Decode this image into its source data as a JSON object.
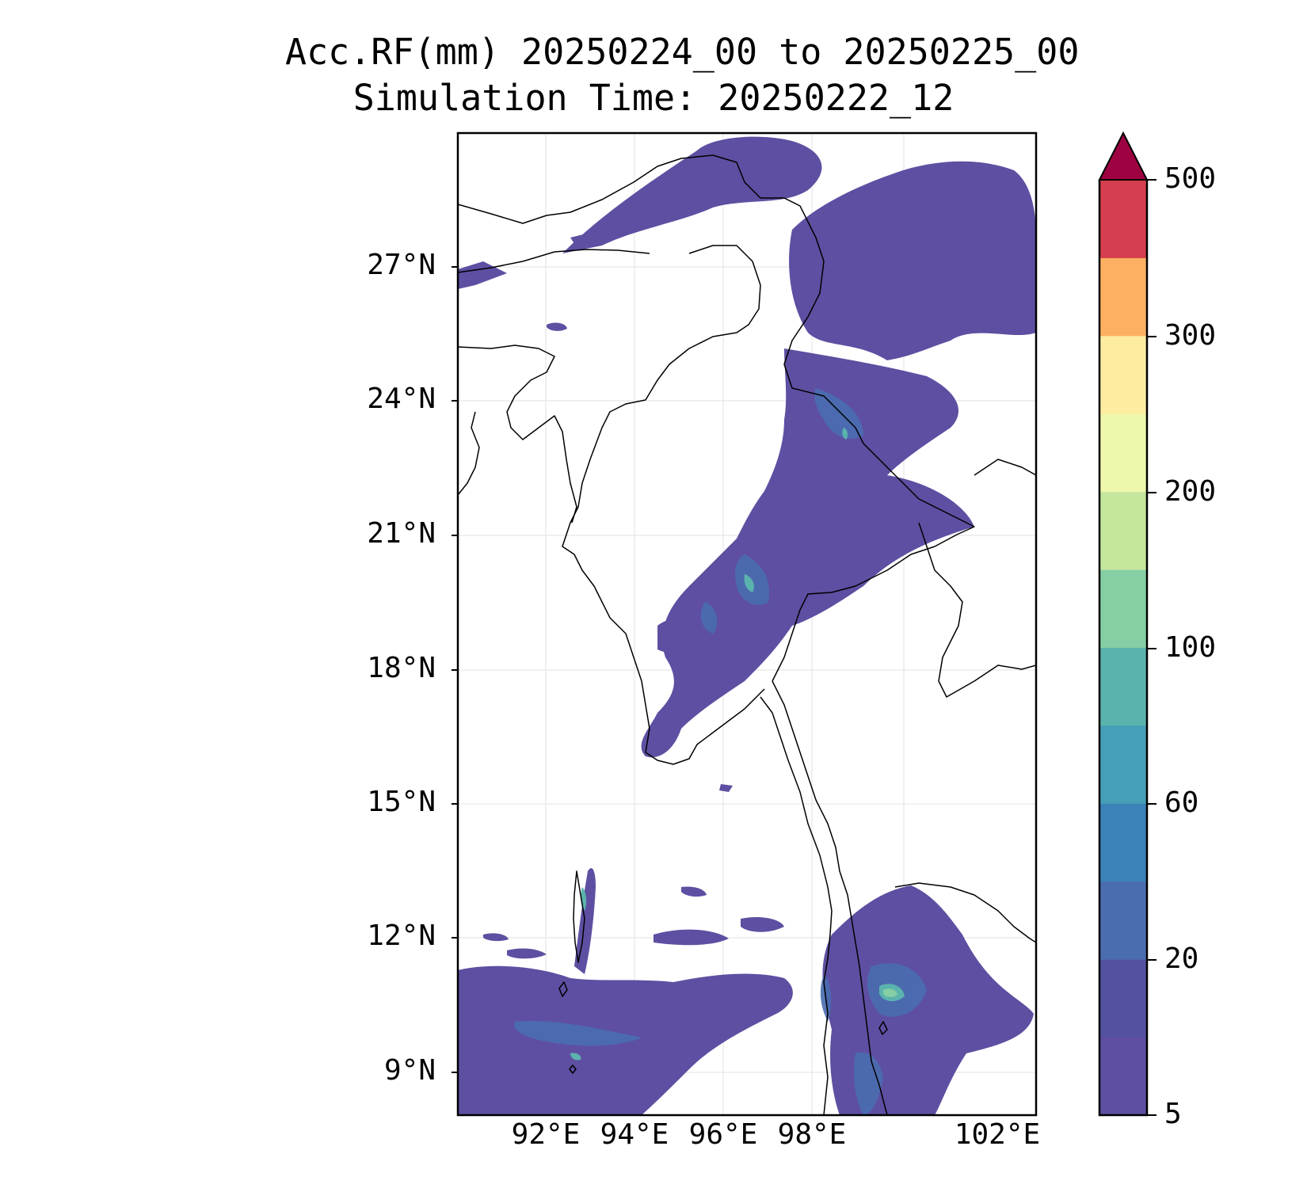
{
  "title": {
    "line1": "Acc.RF(mm) 20250224_00 to 20250225_00",
    "line2": "Simulation Time: 20250222_12"
  },
  "map": {
    "lat_ticks": [
      "27°N",
      "24°N",
      "21°N",
      "18°N",
      "15°N",
      "12°N",
      "9°N"
    ],
    "lon_ticks": [
      "92°E",
      "94°E",
      "96°E",
      "98°E",
      "102°E"
    ],
    "extent": {
      "lon_min": 90,
      "lon_max": 103,
      "lat_min": 8,
      "lat_max": 30
    },
    "grid": true
  },
  "colorbar": {
    "tick_labels": [
      "500",
      "300",
      "200",
      "100",
      "60",
      "20",
      "5"
    ],
    "colors": [
      "#5e4fa2",
      "#5452a0",
      "#4a6db0",
      "#3a82b8",
      "#459fb6",
      "#5bb3ad",
      "#86cfa5",
      "#c4e69d",
      "#eef7ab",
      "#feeda1",
      "#fdb062",
      "#d53e4f"
    ],
    "extend_color": "#9e0142"
  }
}
